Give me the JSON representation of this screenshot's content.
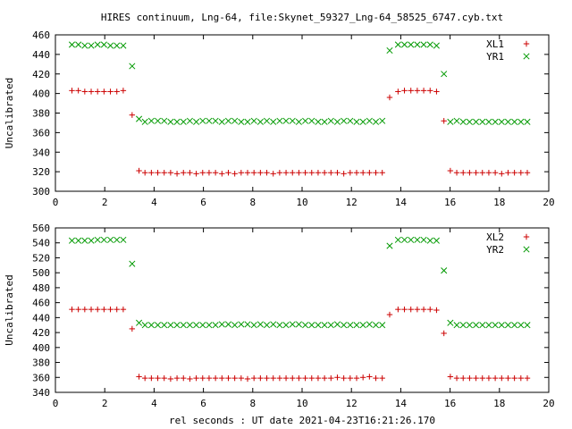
{
  "title": "HIRES continuum, Lng-64, file:Skynet_59327_Lng-64_58525_6747.cyb.txt",
  "xlabel": "rel seconds : UT date 2021-04-23T16:21:26.170",
  "colors": {
    "red": "#cc0000",
    "green": "#009900"
  },
  "chart_data": [
    {
      "type": "scatter",
      "ylabel": "Uncalibrated",
      "xlim": [
        0,
        20
      ],
      "ylim": [
        300,
        460
      ],
      "xticks": [
        0,
        2,
        4,
        6,
        8,
        10,
        12,
        14,
        16,
        18,
        20
      ],
      "yticks": [
        300,
        320,
        340,
        360,
        380,
        400,
        420,
        440,
        460
      ],
      "legend_position": "top-right",
      "series": [
        {
          "name": "XL1",
          "marker": "plus",
          "color": "#cc0000",
          "x": [
            0.67,
            0.93,
            1.19,
            1.45,
            1.71,
            1.97,
            2.23,
            2.49,
            2.75,
            3.11,
            3.39,
            3.63,
            3.89,
            4.15,
            4.41,
            4.67,
            4.93,
            5.19,
            5.45,
            5.71,
            5.97,
            6.23,
            6.49,
            6.75,
            7.01,
            7.27,
            7.53,
            7.79,
            8.05,
            8.31,
            8.57,
            8.83,
            9.09,
            9.35,
            9.61,
            9.87,
            10.13,
            10.39,
            10.65,
            10.91,
            11.17,
            11.43,
            11.69,
            11.95,
            12.21,
            12.47,
            12.73,
            12.99,
            13.25,
            13.55,
            13.89,
            14.15,
            14.41,
            14.67,
            14.93,
            15.19,
            15.45,
            15.75,
            16.01,
            16.27,
            16.53,
            16.79,
            17.05,
            17.31,
            17.57,
            17.83,
            18.09,
            18.35,
            18.61,
            18.87,
            19.13
          ],
          "y": [
            403,
            403,
            402,
            402,
            402,
            402,
            402,
            402,
            403,
            378,
            321,
            319,
            319,
            319,
            319,
            319,
            318,
            319,
            319,
            318,
            319,
            319,
            319,
            318,
            319,
            318,
            319,
            319,
            319,
            319,
            319,
            318,
            319,
            319,
            319,
            319,
            319,
            319,
            319,
            319,
            319,
            319,
            318,
            319,
            319,
            319,
            319,
            319,
            319,
            396,
            402,
            403,
            403,
            403,
            403,
            403,
            402,
            372,
            321,
            319,
            319,
            319,
            319,
            319,
            319,
            319,
            318,
            319,
            319,
            319,
            319
          ]
        },
        {
          "name": "YR1",
          "marker": "cross",
          "color": "#009900",
          "x": [
            0.67,
            0.93,
            1.19,
            1.45,
            1.71,
            1.97,
            2.23,
            2.49,
            2.75,
            3.11,
            3.39,
            3.63,
            3.89,
            4.15,
            4.41,
            4.67,
            4.93,
            5.19,
            5.45,
            5.71,
            5.97,
            6.23,
            6.49,
            6.75,
            7.01,
            7.27,
            7.53,
            7.79,
            8.05,
            8.31,
            8.57,
            8.83,
            9.09,
            9.35,
            9.61,
            9.87,
            10.13,
            10.39,
            10.65,
            10.91,
            11.17,
            11.43,
            11.69,
            11.95,
            12.21,
            12.47,
            12.73,
            12.99,
            13.25,
            13.55,
            13.89,
            14.15,
            14.41,
            14.67,
            14.93,
            15.19,
            15.45,
            15.75,
            16.01,
            16.27,
            16.53,
            16.79,
            17.05,
            17.31,
            17.57,
            17.83,
            18.09,
            18.35,
            18.61,
            18.87,
            19.13
          ],
          "y": [
            450,
            450,
            449,
            449,
            450,
            450,
            449,
            449,
            449,
            428,
            374,
            371,
            372,
            372,
            372,
            371,
            371,
            371,
            372,
            371,
            372,
            372,
            372,
            371,
            372,
            372,
            371,
            371,
            372,
            371,
            372,
            371,
            372,
            372,
            372,
            371,
            372,
            372,
            371,
            371,
            372,
            371,
            372,
            372,
            371,
            371,
            372,
            371,
            372,
            444,
            450,
            450,
            450,
            450,
            450,
            450,
            449,
            420,
            371,
            372,
            371,
            371,
            371,
            371,
            371,
            371,
            371,
            371,
            371,
            371,
            371
          ]
        }
      ]
    },
    {
      "type": "scatter",
      "ylabel": "Uncalibrated",
      "xlim": [
        0,
        20
      ],
      "ylim": [
        340,
        560
      ],
      "xticks": [
        0,
        2,
        4,
        6,
        8,
        10,
        12,
        14,
        16,
        18,
        20
      ],
      "yticks": [
        340,
        360,
        380,
        400,
        420,
        440,
        460,
        480,
        500,
        520,
        540,
        560
      ],
      "legend_position": "top-right",
      "series": [
        {
          "name": "XL2",
          "marker": "plus",
          "color": "#cc0000",
          "x": [
            0.67,
            0.93,
            1.19,
            1.45,
            1.71,
            1.97,
            2.23,
            2.49,
            2.75,
            3.11,
            3.39,
            3.63,
            3.89,
            4.15,
            4.41,
            4.67,
            4.93,
            5.19,
            5.45,
            5.71,
            5.97,
            6.23,
            6.49,
            6.75,
            7.01,
            7.27,
            7.53,
            7.79,
            8.05,
            8.31,
            8.57,
            8.83,
            9.09,
            9.35,
            9.61,
            9.87,
            10.13,
            10.39,
            10.65,
            10.91,
            11.17,
            11.43,
            11.69,
            11.95,
            12.21,
            12.47,
            12.73,
            12.99,
            13.25,
            13.55,
            13.89,
            14.15,
            14.41,
            14.67,
            14.93,
            15.19,
            15.45,
            15.75,
            16.01,
            16.27,
            16.53,
            16.79,
            17.05,
            17.31,
            17.57,
            17.83,
            18.09,
            18.35,
            18.61,
            18.87,
            19.13
          ],
          "y": [
            451,
            451,
            451,
            451,
            451,
            451,
            451,
            451,
            451,
            425,
            361,
            359,
            359,
            359,
            359,
            358,
            359,
            359,
            358,
            359,
            359,
            359,
            359,
            359,
            359,
            359,
            359,
            358,
            359,
            359,
            359,
            359,
            359,
            359,
            359,
            359,
            359,
            359,
            359,
            359,
            359,
            360,
            359,
            359,
            359,
            360,
            361,
            359,
            359,
            444,
            451,
            451,
            451,
            451,
            451,
            451,
            450,
            419,
            361,
            359,
            359,
            359,
            359,
            359,
            359,
            359,
            359,
            359,
            359,
            359,
            359
          ]
        },
        {
          "name": "YR2",
          "marker": "cross",
          "color": "#009900",
          "x": [
            0.67,
            0.93,
            1.19,
            1.45,
            1.71,
            1.97,
            2.23,
            2.49,
            2.75,
            3.11,
            3.39,
            3.63,
            3.89,
            4.15,
            4.41,
            4.67,
            4.93,
            5.19,
            5.45,
            5.71,
            5.97,
            6.23,
            6.49,
            6.75,
            7.01,
            7.27,
            7.53,
            7.79,
            8.05,
            8.31,
            8.57,
            8.83,
            9.09,
            9.35,
            9.61,
            9.87,
            10.13,
            10.39,
            10.65,
            10.91,
            11.17,
            11.43,
            11.69,
            11.95,
            12.21,
            12.47,
            12.73,
            12.99,
            13.25,
            13.55,
            13.89,
            14.15,
            14.41,
            14.67,
            14.93,
            15.19,
            15.45,
            15.75,
            16.01,
            16.27,
            16.53,
            16.79,
            17.05,
            17.31,
            17.57,
            17.83,
            18.09,
            18.35,
            18.61,
            18.87,
            19.13
          ],
          "y": [
            543,
            543,
            543,
            543,
            544,
            544,
            544,
            544,
            544,
            512,
            433,
            430,
            430,
            430,
            430,
            430,
            430,
            430,
            430,
            430,
            430,
            430,
            430,
            431,
            431,
            430,
            431,
            431,
            430,
            431,
            430,
            431,
            430,
            430,
            431,
            431,
            430,
            430,
            430,
            430,
            430,
            431,
            430,
            430,
            430,
            430,
            431,
            430,
            430,
            536,
            544,
            544,
            544,
            544,
            544,
            543,
            543,
            503,
            433,
            430,
            430,
            430,
            430,
            430,
            430,
            430,
            430,
            430,
            430,
            430,
            430
          ]
        }
      ]
    }
  ]
}
